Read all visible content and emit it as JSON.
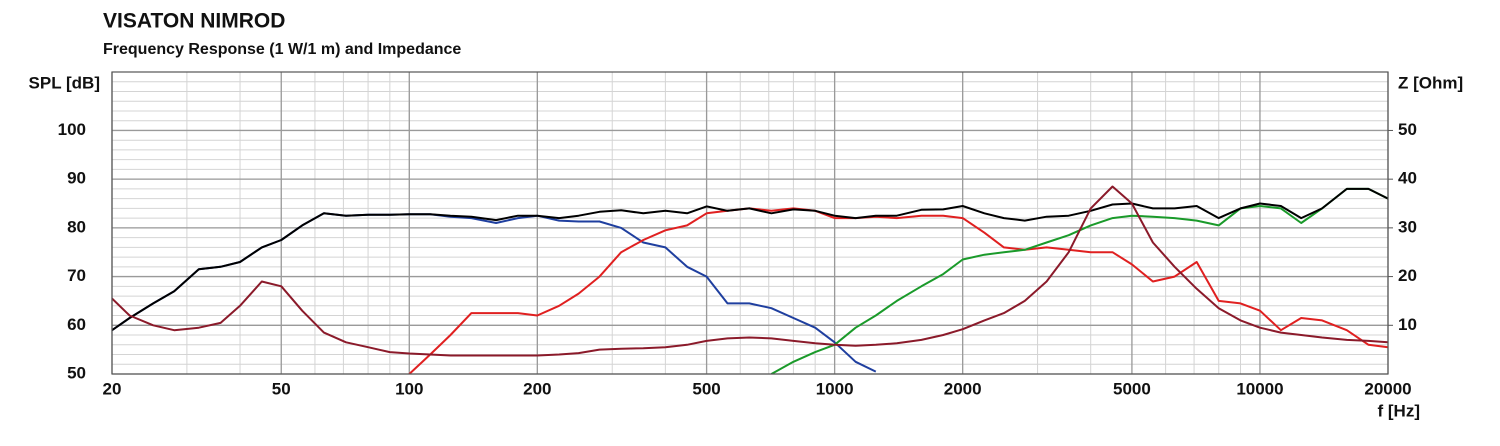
{
  "chart_data": {
    "type": "line",
    "title": "VISATON NIMROD",
    "subtitle": "Frequency Response (1 W/1 m) and Impedance",
    "y_label": "SPL [dB]",
    "y2_label": "Z [Ohm]",
    "x_label": "f [Hz]",
    "xscale": "log",
    "grid": true,
    "minor_grid": true,
    "xlim": [
      20,
      20000
    ],
    "xticks": [
      20,
      50,
      100,
      200,
      500,
      1000,
      2000,
      5000,
      10000,
      20000
    ],
    "ylim": [
      50,
      112
    ],
    "yticks": [
      50,
      60,
      70,
      80,
      90,
      100
    ],
    "y2lim": [
      0,
      62
    ],
    "y2ticks": [
      10,
      20,
      30,
      40,
      50
    ],
    "x": [
      20,
      22,
      25,
      28,
      32,
      36,
      40,
      45,
      50,
      56,
      63,
      71,
      80,
      90,
      100,
      112,
      125,
      140,
      160,
      180,
      200,
      225,
      250,
      280,
      315,
      355,
      400,
      450,
      500,
      560,
      630,
      710,
      800,
      900,
      1000,
      1120,
      1250,
      1400,
      1600,
      1800,
      2000,
      2250,
      2500,
      2800,
      3150,
      3550,
      4000,
      4500,
      5000,
      5600,
      6300,
      7100,
      8000,
      9000,
      10000,
      11200,
      12500,
      14000,
      16000,
      18000,
      20000
    ],
    "series": [
      {
        "color": "#1f3f9f",
        "values": [
          59,
          61.5,
          64.5,
          67,
          71.5,
          72,
          73,
          76,
          77.5,
          80.5,
          83,
          82.5,
          82.7,
          82.7,
          82.8,
          82.8,
          82.3,
          82,
          81,
          82,
          82.5,
          81.5,
          81.3,
          81.3,
          80,
          77,
          76,
          72,
          70,
          64.5,
          64.5,
          63.5,
          61.5,
          59.5,
          56.5,
          52.5,
          50.5,
          null,
          null,
          null,
          null,
          null,
          null,
          null,
          null,
          null,
          null,
          null,
          null,
          null,
          null,
          null,
          null,
          null,
          null,
          null,
          null,
          null,
          null,
          null,
          null
        ]
      },
      {
        "color": "#e02020",
        "values": [
          null,
          null,
          null,
          null,
          null,
          null,
          null,
          null,
          null,
          null,
          null,
          null,
          null,
          null,
          50,
          54,
          58,
          62.5,
          62.5,
          62.5,
          62,
          64,
          66.5,
          70,
          75,
          77.5,
          79.5,
          80.5,
          83,
          83.5,
          84,
          83.5,
          84,
          83.5,
          82,
          82,
          82.3,
          82,
          82.5,
          82.5,
          82,
          79,
          76,
          75.5,
          76,
          75.5,
          75,
          75,
          72.5,
          69,
          70,
          73,
          65,
          64.5,
          63,
          59,
          61.5,
          61,
          59,
          56,
          55.5
        ]
      },
      {
        "color": "#1a9a2a",
        "values": [
          null,
          null,
          null,
          null,
          null,
          null,
          null,
          null,
          null,
          null,
          null,
          null,
          null,
          null,
          null,
          null,
          null,
          null,
          null,
          null,
          null,
          null,
          null,
          null,
          null,
          null,
          null,
          null,
          null,
          null,
          null,
          50,
          52.5,
          54.5,
          56,
          59.5,
          62,
          65,
          68,
          70.5,
          73.5,
          74.5,
          75,
          75.5,
          77,
          78.5,
          80.5,
          82,
          82.5,
          82.3,
          82,
          81.5,
          80.5,
          84,
          84.5,
          84,
          81,
          84,
          88,
          88,
          86
        ]
      },
      {
        "color": "#000000",
        "values": [
          59,
          61.5,
          64.5,
          67,
          71.5,
          72,
          73,
          76,
          77.5,
          80.5,
          83,
          82.5,
          82.7,
          82.7,
          82.8,
          82.8,
          82.5,
          82.3,
          81.6,
          82.5,
          82.5,
          82,
          82.5,
          83.3,
          83.6,
          83,
          83.5,
          83,
          84.4,
          83.5,
          84,
          83,
          83.8,
          83.5,
          82.5,
          82,
          82.5,
          82.5,
          83.7,
          83.8,
          84.5,
          83,
          82,
          81.5,
          82.3,
          82.5,
          83.5,
          84.8,
          85,
          84,
          84,
          84.5,
          82,
          84,
          85,
          84.5,
          82,
          84,
          88,
          88,
          86
        ]
      },
      {
        "color": "#8b1a2a",
        "axis": "y2",
        "values": [
          15.5,
          12,
          10,
          9,
          9.5,
          10.5,
          14,
          19,
          18,
          13,
          8.5,
          6.5,
          5.5,
          4.5,
          4.2,
          4,
          3.8,
          3.8,
          3.8,
          3.8,
          3.8,
          4,
          4.3,
          5,
          5.2,
          5.3,
          5.5,
          6,
          6.8,
          7.3,
          7.5,
          7.3,
          6.8,
          6.3,
          6,
          5.8,
          6,
          6.3,
          7,
          8,
          9.2,
          11,
          12.5,
          15,
          19,
          25,
          34,
          38.5,
          35,
          27,
          22,
          17.5,
          13.5,
          11,
          9.5,
          8.5,
          8,
          7.5,
          7,
          6.8,
          6.5
        ]
      }
    ]
  }
}
